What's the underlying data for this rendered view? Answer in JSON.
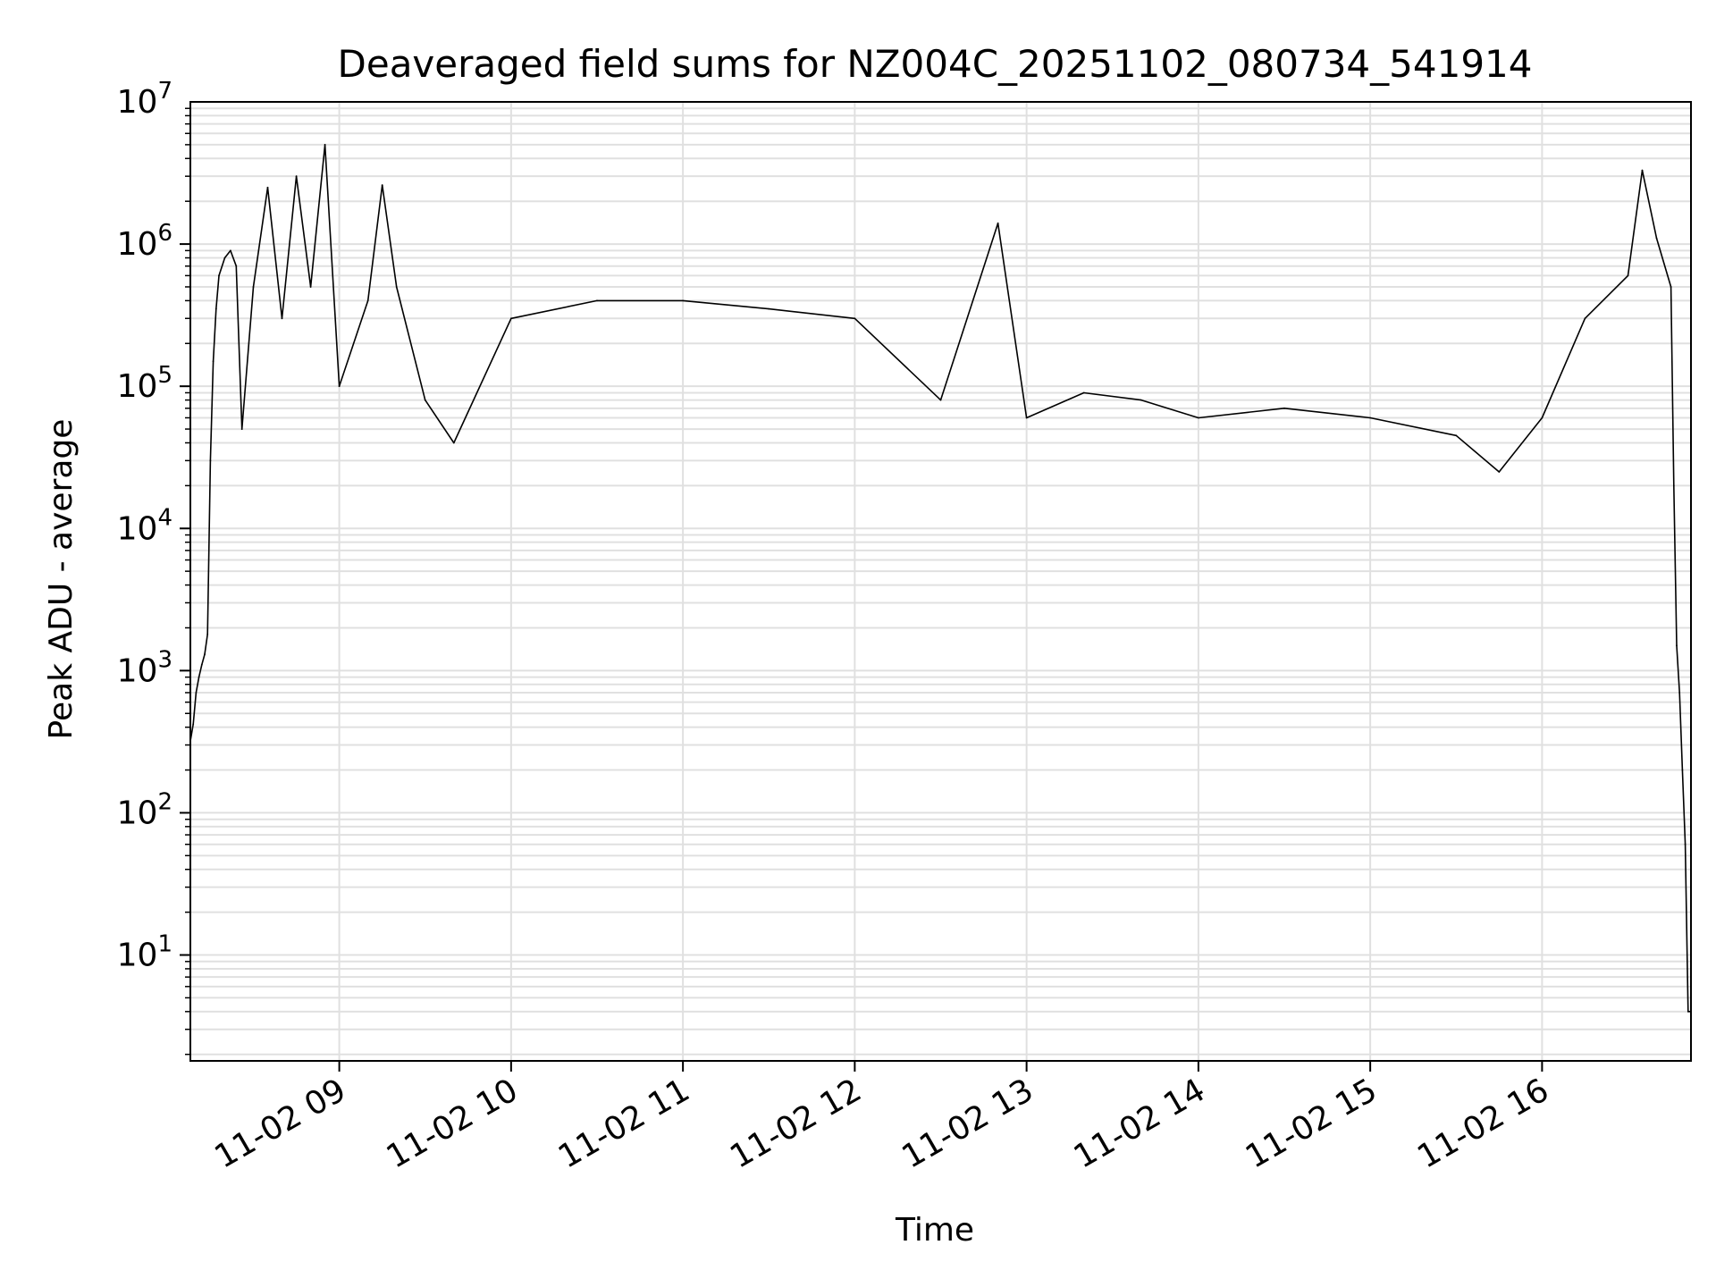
{
  "chart_data": {
    "type": "line",
    "title": "Deaveraged field sums for NZ004C_20251102_080734_541914",
    "xlabel": "Time",
    "ylabel": "Peak ADU - average",
    "yscale": "log",
    "ylim": [
      1.8,
      10000000
    ],
    "xlim": [
      "11-02 08:08",
      "11-02 16:52"
    ],
    "grid": true,
    "x_tick_labels": [
      "11-02 09",
      "11-02 10",
      "11-02 11",
      "11-02 12",
      "11-02 13",
      "11-02 14",
      "11-02 15",
      "11-02 16"
    ],
    "y_tick_labels": [
      {
        "base": "10",
        "exp": "1"
      },
      {
        "base": "10",
        "exp": "2"
      },
      {
        "base": "10",
        "exp": "3"
      },
      {
        "base": "10",
        "exp": "4"
      },
      {
        "base": "10",
        "exp": "5"
      },
      {
        "base": "10",
        "exp": "6"
      },
      {
        "base": "10",
        "exp": "7"
      }
    ],
    "series": [
      {
        "color": "#000000",
        "points": [
          [
            "11-02 08:08",
            320
          ],
          [
            "11-02 08:09",
            420
          ],
          [
            "11-02 08:10",
            700
          ],
          [
            "11-02 08:11",
            900
          ],
          [
            "11-02 08:12",
            1100
          ],
          [
            "11-02 08:13",
            1300
          ],
          [
            "11-02 08:14",
            1800
          ],
          [
            "11-02 08:15",
            30000
          ],
          [
            "11-02 08:16",
            150000
          ],
          [
            "11-02 08:17",
            350000
          ],
          [
            "11-02 08:18",
            600000
          ],
          [
            "11-02 08:20",
            800000
          ],
          [
            "11-02 08:22",
            900000
          ],
          [
            "11-02 08:24",
            700000
          ],
          [
            "11-02 08:26",
            50000
          ],
          [
            "11-02 08:30",
            500000
          ],
          [
            "11-02 08:35",
            2500000
          ],
          [
            "11-02 08:40",
            300000
          ],
          [
            "11-02 08:45",
            3000000
          ],
          [
            "11-02 08:50",
            500000
          ],
          [
            "11-02 08:55",
            5000000
          ],
          [
            "11-02 09:00",
            100000
          ],
          [
            "11-02 09:10",
            400000
          ],
          [
            "11-02 09:15",
            2600000
          ],
          [
            "11-02 09:20",
            500000
          ],
          [
            "11-02 09:30",
            80000
          ],
          [
            "11-02 09:40",
            40000
          ],
          [
            "11-02 10:00",
            300000
          ],
          [
            "11-02 10:30",
            400000
          ],
          [
            "11-02 11:00",
            400000
          ],
          [
            "11-02 11:30",
            350000
          ],
          [
            "11-02 12:00",
            300000
          ],
          [
            "11-02 12:30",
            80000
          ],
          [
            "11-02 12:50",
            1400000
          ],
          [
            "11-02 13:00",
            60000
          ],
          [
            "11-02 13:20",
            90000
          ],
          [
            "11-02 13:40",
            80000
          ],
          [
            "11-02 14:00",
            60000
          ],
          [
            "11-02 14:30",
            70000
          ],
          [
            "11-02 15:00",
            60000
          ],
          [
            "11-02 15:30",
            45000
          ],
          [
            "11-02 15:45",
            25000
          ],
          [
            "11-02 16:00",
            60000
          ],
          [
            "11-02 16:15",
            300000
          ],
          [
            "11-02 16:30",
            600000
          ],
          [
            "11-02 16:35",
            3300000
          ],
          [
            "11-02 16:40",
            1100000
          ],
          [
            "11-02 16:45",
            500000
          ],
          [
            "11-02 16:46",
            20000
          ],
          [
            "11-02 16:47",
            1500
          ],
          [
            "11-02 16:48",
            700
          ],
          [
            "11-02 16:49",
            200
          ],
          [
            "11-02 16:50",
            60
          ],
          [
            "11-02 16:51",
            4
          ],
          [
            "11-02 16:52",
            4
          ]
        ]
      }
    ]
  }
}
